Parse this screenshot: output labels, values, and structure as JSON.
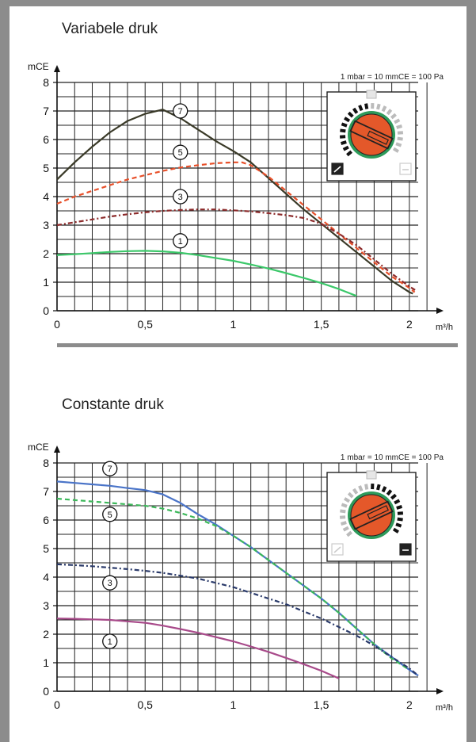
{
  "chart_data": [
    {
      "type": "line",
      "title": "Variabele druk",
      "ylabel": "mCE",
      "xlabel": "m³/h",
      "note": "1 mbar = 10 mmCE = 100 Pa",
      "xlim": [
        0,
        2.05
      ],
      "ylim": [
        0,
        8
      ],
      "xticks": [
        "0",
        "0,5",
        "1",
        "1,5",
        "2"
      ],
      "xtick_values": [
        0,
        0.5,
        1,
        1.5,
        2
      ],
      "yticks": [
        "0",
        "1",
        "2",
        "3",
        "4",
        "5",
        "6",
        "7",
        "8"
      ],
      "grid": true,
      "legend": "numbered circle markers on curves",
      "series": [
        {
          "name": "7",
          "color": "#3a3a28",
          "dash": "",
          "label_at": [
            0.7,
            7.0
          ],
          "points": [
            [
              0,
              4.6
            ],
            [
              0.1,
              5.2
            ],
            [
              0.2,
              5.75
            ],
            [
              0.3,
              6.25
            ],
            [
              0.4,
              6.65
            ],
            [
              0.5,
              6.9
            ],
            [
              0.6,
              7.05
            ],
            [
              0.7,
              6.75
            ],
            [
              0.8,
              6.35
            ],
            [
              0.9,
              5.95
            ],
            [
              1.0,
              5.6
            ],
            [
              1.1,
              5.2
            ],
            [
              1.2,
              4.65
            ],
            [
              1.3,
              4.1
            ],
            [
              1.4,
              3.55
            ],
            [
              1.5,
              3.05
            ],
            [
              1.6,
              2.55
            ],
            [
              1.7,
              2.05
            ],
            [
              1.8,
              1.55
            ],
            [
              1.9,
              1.05
            ],
            [
              2.0,
              0.65
            ],
            [
              2.02,
              0.6
            ]
          ]
        },
        {
          "name": "5",
          "color": "#e8502a",
          "dash": "6,4",
          "label_at": [
            0.7,
            5.55
          ],
          "points": [
            [
              0,
              3.75
            ],
            [
              0.1,
              4.0
            ],
            [
              0.2,
              4.2
            ],
            [
              0.3,
              4.4
            ],
            [
              0.4,
              4.6
            ],
            [
              0.5,
              4.75
            ],
            [
              0.6,
              4.9
            ],
            [
              0.7,
              5.02
            ],
            [
              0.8,
              5.1
            ],
            [
              0.9,
              5.17
            ],
            [
              1.0,
              5.2
            ],
            [
              1.05,
              5.2
            ],
            [
              1.1,
              5.1
            ],
            [
              1.2,
              4.7
            ],
            [
              1.3,
              4.2
            ],
            [
              1.4,
              3.7
            ],
            [
              1.5,
              3.2
            ],
            [
              1.6,
              2.7
            ],
            [
              1.7,
              2.2
            ],
            [
              1.8,
              1.7
            ],
            [
              1.9,
              1.2
            ],
            [
              2.0,
              0.8
            ],
            [
              2.03,
              0.65
            ]
          ]
        },
        {
          "name": "3",
          "color": "#8c2a2a",
          "dash": "6,3,2,3",
          "label_at": [
            0.7,
            4.0
          ],
          "points": [
            [
              0,
              3.0
            ],
            [
              0.1,
              3.1
            ],
            [
              0.2,
              3.2
            ],
            [
              0.3,
              3.3
            ],
            [
              0.4,
              3.38
            ],
            [
              0.5,
              3.45
            ],
            [
              0.6,
              3.5
            ],
            [
              0.7,
              3.53
            ],
            [
              0.8,
              3.55
            ],
            [
              0.9,
              3.55
            ],
            [
              1.0,
              3.52
            ],
            [
              1.1,
              3.48
            ],
            [
              1.2,
              3.42
            ],
            [
              1.3,
              3.35
            ],
            [
              1.4,
              3.25
            ],
            [
              1.5,
              3.05
            ],
            [
              1.6,
              2.7
            ],
            [
              1.7,
              2.3
            ],
            [
              1.8,
              1.8
            ],
            [
              1.9,
              1.3
            ],
            [
              2.0,
              0.85
            ],
            [
              2.04,
              0.7
            ]
          ]
        },
        {
          "name": "1",
          "color": "#3cc86a",
          "dash": "",
          "label_at": [
            0.7,
            2.45
          ],
          "points": [
            [
              0,
              1.95
            ],
            [
              0.1,
              1.98
            ],
            [
              0.2,
              2.02
            ],
            [
              0.3,
              2.06
            ],
            [
              0.4,
              2.09
            ],
            [
              0.5,
              2.1
            ],
            [
              0.6,
              2.08
            ],
            [
              0.7,
              2.03
            ],
            [
              0.8,
              1.95
            ],
            [
              0.9,
              1.85
            ],
            [
              1.0,
              1.75
            ],
            [
              1.1,
              1.62
            ],
            [
              1.2,
              1.48
            ],
            [
              1.3,
              1.32
            ],
            [
              1.4,
              1.15
            ],
            [
              1.5,
              0.97
            ],
            [
              1.6,
              0.76
            ],
            [
              1.7,
              0.52
            ]
          ]
        }
      ]
    },
    {
      "type": "line",
      "title": "Constante druk",
      "ylabel": "mCE",
      "xlabel": "m³/h",
      "note": "1 mbar = 10 mmCE = 100 Pa",
      "xlim": [
        0,
        2.05
      ],
      "ylim": [
        0,
        8
      ],
      "xticks": [
        "0",
        "0,5",
        "1",
        "1,5",
        "2"
      ],
      "xtick_values": [
        0,
        0.5,
        1,
        1.5,
        2
      ],
      "yticks": [
        "0",
        "1",
        "2",
        "3",
        "4",
        "5",
        "6",
        "7",
        "8"
      ],
      "grid": true,
      "legend": "numbered circle markers on curves",
      "series": [
        {
          "name": "7",
          "color": "#4a74c8",
          "dash": "",
          "label_at": [
            0.3,
            7.8
          ],
          "points": [
            [
              0,
              7.35
            ],
            [
              0.1,
              7.3
            ],
            [
              0.2,
              7.25
            ],
            [
              0.3,
              7.2
            ],
            [
              0.4,
              7.12
            ],
            [
              0.5,
              7.05
            ],
            [
              0.6,
              6.9
            ],
            [
              0.7,
              6.6
            ],
            [
              0.8,
              6.2
            ],
            [
              0.9,
              5.85
            ],
            [
              1.0,
              5.45
            ],
            [
              1.1,
              5.05
            ],
            [
              1.2,
              4.6
            ],
            [
              1.3,
              4.15
            ],
            [
              1.4,
              3.7
            ],
            [
              1.5,
              3.25
            ],
            [
              1.6,
              2.75
            ],
            [
              1.7,
              2.2
            ],
            [
              1.8,
              1.65
            ],
            [
              1.9,
              1.2
            ],
            [
              2.0,
              0.75
            ],
            [
              2.05,
              0.55
            ]
          ]
        },
        {
          "name": "5",
          "color": "#3cb85a",
          "dash": "6,4",
          "label_at": [
            0.3,
            6.2
          ],
          "points": [
            [
              0,
              6.75
            ],
            [
              0.1,
              6.7
            ],
            [
              0.2,
              6.65
            ],
            [
              0.3,
              6.6
            ],
            [
              0.4,
              6.55
            ],
            [
              0.5,
              6.5
            ],
            [
              0.6,
              6.4
            ],
            [
              0.7,
              6.25
            ],
            [
              0.8,
              6.05
            ],
            [
              0.9,
              5.8
            ],
            [
              1.0,
              5.45
            ],
            [
              1.1,
              5.05
            ],
            [
              1.2,
              4.6
            ],
            [
              1.3,
              4.15
            ],
            [
              1.4,
              3.7
            ],
            [
              1.5,
              3.25
            ],
            [
              1.6,
              2.75
            ],
            [
              1.7,
              2.2
            ],
            [
              1.8,
              1.65
            ],
            [
              1.9,
              1.15
            ],
            [
              2.0,
              0.75
            ]
          ]
        },
        {
          "name": "3",
          "color": "#2a3a6a",
          "dash": "6,3,2,3",
          "label_at": [
            0.3,
            3.8
          ],
          "points": [
            [
              0,
              4.45
            ],
            [
              0.1,
              4.42
            ],
            [
              0.2,
              4.38
            ],
            [
              0.3,
              4.33
            ],
            [
              0.4,
              4.28
            ],
            [
              0.5,
              4.22
            ],
            [
              0.6,
              4.15
            ],
            [
              0.7,
              4.05
            ],
            [
              0.8,
              3.95
            ],
            [
              0.9,
              3.8
            ],
            [
              1.0,
              3.65
            ],
            [
              1.1,
              3.45
            ],
            [
              1.2,
              3.25
            ],
            [
              1.3,
              3.05
            ],
            [
              1.4,
              2.8
            ],
            [
              1.5,
              2.55
            ],
            [
              1.6,
              2.25
            ],
            [
              1.7,
              1.95
            ],
            [
              1.8,
              1.6
            ],
            [
              1.9,
              1.2
            ],
            [
              2.0,
              0.8
            ],
            [
              2.05,
              0.55
            ]
          ]
        },
        {
          "name": "1",
          "color": "#a84a8a",
          "dash": "",
          "label_at": [
            0.3,
            1.75
          ],
          "points": [
            [
              0,
              2.55
            ],
            [
              0.1,
              2.54
            ],
            [
              0.2,
              2.52
            ],
            [
              0.3,
              2.5
            ],
            [
              0.4,
              2.45
            ],
            [
              0.5,
              2.4
            ],
            [
              0.6,
              2.3
            ],
            [
              0.7,
              2.18
            ],
            [
              0.8,
              2.05
            ],
            [
              0.9,
              1.9
            ],
            [
              1.0,
              1.75
            ],
            [
              1.1,
              1.57
            ],
            [
              1.2,
              1.38
            ],
            [
              1.3,
              1.17
            ],
            [
              1.4,
              0.95
            ],
            [
              1.5,
              0.72
            ],
            [
              1.6,
              0.45
            ]
          ]
        }
      ]
    }
  ]
}
